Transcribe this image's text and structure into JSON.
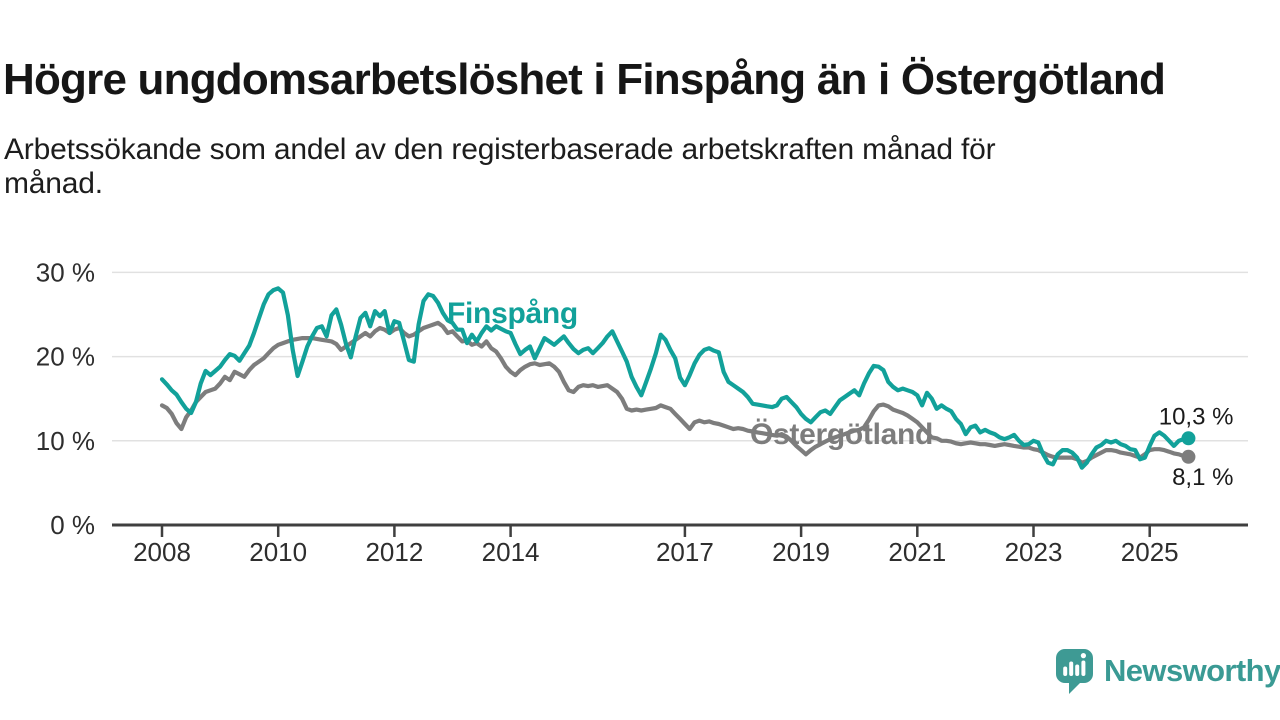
{
  "header": {
    "title": "Högre ungdomsarbetslöshet i Finspång än i Östergötland",
    "subtitle_lines": [
      "Arbetssökande som andel av den registerbaserade arbetskraften månad för",
      "månad."
    ]
  },
  "chart_data": {
    "type": "line",
    "frequency": "monthly",
    "x_start": "2008-01",
    "x_end": "2025-09",
    "x_tick_years": [
      2008,
      2010,
      2012,
      2014,
      2017,
      2019,
      2021,
      2023,
      2025
    ],
    "ylim": [
      0,
      30
    ],
    "y_ticks": [
      0,
      10,
      20,
      30
    ],
    "y_tick_labels": [
      "0 %",
      "10 %",
      "20 %",
      "30 %"
    ],
    "grid": "horizontal",
    "legend_position": "inline-labels",
    "series": [
      {
        "name": "Östergötland",
        "color": "#7d7d7d",
        "end_label": "8,1 %",
        "end_value": 8.1,
        "values": [
          14.2,
          13.9,
          13.2,
          12.1,
          11.4,
          12.8,
          13.6,
          14.6,
          15.2,
          15.8,
          16.0,
          16.2,
          16.8,
          17.6,
          17.2,
          18.2,
          17.9,
          17.6,
          18.4,
          19.0,
          19.4,
          19.8,
          20.4,
          21.0,
          21.4,
          21.6,
          21.8,
          22.0,
          22.1,
          22.2,
          22.2,
          22.2,
          22.1,
          22.0,
          21.9,
          21.8,
          21.5,
          20.8,
          21.2,
          21.6,
          22.0,
          22.4,
          22.8,
          22.4,
          23.0,
          23.4,
          23.2,
          22.8,
          23.2,
          23.4,
          22.8,
          22.4,
          22.6,
          23.0,
          23.4,
          23.6,
          23.8,
          24.0,
          23.6,
          22.8,
          23.0,
          22.4,
          21.8,
          21.9,
          21.4,
          21.6,
          21.2,
          21.8,
          21.0,
          20.6,
          19.8,
          18.8,
          18.2,
          17.8,
          18.4,
          18.8,
          19.1,
          19.2,
          19.0,
          19.1,
          19.2,
          18.8,
          18.2,
          17.0,
          16.0,
          15.8,
          16.4,
          16.6,
          16.5,
          16.6,
          16.4,
          16.5,
          16.6,
          16.2,
          15.8,
          15.0,
          13.8,
          13.6,
          13.7,
          13.6,
          13.7,
          13.8,
          13.9,
          14.2,
          14.0,
          13.8,
          13.2,
          12.6,
          12.0,
          11.4,
          12.2,
          12.4,
          12.2,
          12.3,
          12.1,
          12.0,
          11.8,
          11.6,
          11.4,
          11.5,
          11.4,
          11.2,
          11.1,
          11.0,
          10.9,
          10.8,
          10.7,
          10.6,
          10.8,
          10.5,
          10.0,
          9.4,
          8.9,
          8.4,
          8.9,
          9.3,
          9.6,
          9.9,
          10.2,
          10.4,
          10.6,
          10.8,
          11.0,
          11.2,
          11.3,
          11.6,
          12.5,
          13.5,
          14.2,
          14.3,
          14.1,
          13.7,
          13.5,
          13.3,
          13.0,
          12.6,
          12.2,
          11.6,
          11.0,
          10.4,
          10.3,
          10.0,
          10.0,
          9.9,
          9.7,
          9.6,
          9.7,
          9.8,
          9.7,
          9.6,
          9.6,
          9.5,
          9.4,
          9.5,
          9.6,
          9.5,
          9.4,
          9.3,
          9.2,
          9.2,
          9.0,
          8.9,
          8.6,
          8.3,
          8.1,
          8.0,
          8.0,
          8.0,
          8.0,
          7.8,
          7.4,
          7.6,
          8.0,
          8.3,
          8.6,
          8.9,
          8.9,
          8.8,
          8.6,
          8.5,
          8.4,
          8.2,
          8.0,
          8.4,
          8.9,
          9.0,
          9.0,
          8.9,
          8.7,
          8.5,
          8.4,
          8.2,
          8.1
        ]
      },
      {
        "name": "Finspång",
        "color": "#12a19a",
        "end_label": "10,3 %",
        "end_value": 10.3,
        "values": [
          17.3,
          16.7,
          16.0,
          15.5,
          14.6,
          13.8,
          13.3,
          14.6,
          16.8,
          18.3,
          17.8,
          18.3,
          18.8,
          19.6,
          20.3,
          20.1,
          19.5,
          20.4,
          21.3,
          22.8,
          24.5,
          26.2,
          27.4,
          27.9,
          28.1,
          27.6,
          24.9,
          20.8,
          17.7,
          19.4,
          21.2,
          22.4,
          23.4,
          23.6,
          22.4,
          24.9,
          25.6,
          23.8,
          21.5,
          19.9,
          22.4,
          24.6,
          25.2,
          23.6,
          25.4,
          24.8,
          25.4,
          22.8,
          24.2,
          24.0,
          21.8,
          19.6,
          19.4,
          23.8,
          26.6,
          27.4,
          27.2,
          26.4,
          25.2,
          24.3,
          24.0,
          23.2,
          23.2,
          21.6,
          22.6,
          21.8,
          22.8,
          23.6,
          23.1,
          23.6,
          23.3,
          23.0,
          22.8,
          21.5,
          20.3,
          20.8,
          21.2,
          19.8,
          21.0,
          22.2,
          21.8,
          21.4,
          21.9,
          22.4,
          21.6,
          20.9,
          20.4,
          20.8,
          21.0,
          20.4,
          21.0,
          21.6,
          22.4,
          23.0,
          21.8,
          20.6,
          19.4,
          17.6,
          16.4,
          15.4,
          17.0,
          18.6,
          20.4,
          22.6,
          22.0,
          20.8,
          19.8,
          17.5,
          16.6,
          17.8,
          19.2,
          20.2,
          20.8,
          21.0,
          20.7,
          20.5,
          18.2,
          17.0,
          16.6,
          16.2,
          15.8,
          15.2,
          14.4,
          14.3,
          14.2,
          14.1,
          14.0,
          14.2,
          15.0,
          15.2,
          14.6,
          14.0,
          13.2,
          12.6,
          12.2,
          12.8,
          13.4,
          13.6,
          13.2,
          14.0,
          14.8,
          15.2,
          15.6,
          16.0,
          15.4,
          16.8,
          18.0,
          18.9,
          18.8,
          18.4,
          17.0,
          16.4,
          16.0,
          16.2,
          16.0,
          15.8,
          15.4,
          14.2,
          15.7,
          15.0,
          13.8,
          14.2,
          13.8,
          13.5,
          12.6,
          12.0,
          10.8,
          11.6,
          11.8,
          11.0,
          11.3,
          11.0,
          10.8,
          10.4,
          10.2,
          10.4,
          10.7,
          10.0,
          9.5,
          9.6,
          10.0,
          9.8,
          8.4,
          7.4,
          7.2,
          8.4,
          8.9,
          8.9,
          8.6,
          8.0,
          6.8,
          7.4,
          8.4,
          9.2,
          9.5,
          10.0,
          9.8,
          10.0,
          9.6,
          9.4,
          9.0,
          8.9,
          7.8,
          8.0,
          9.4,
          10.6,
          11.0,
          10.6,
          10.0,
          9.4,
          10.0,
          10.2,
          10.3
        ]
      }
    ]
  },
  "footer": {
    "logo_text": "Newsworthy"
  },
  "colors": {
    "finspang_line": "#12a19a",
    "ostergotland_line": "#7d7d7d",
    "grid": "#e1e1e1",
    "axis": "#3f3f3f",
    "axis_text": "#2e2e2e",
    "value_label_text": "#1a1a1a",
    "logo_teal": "#3a9a94"
  }
}
